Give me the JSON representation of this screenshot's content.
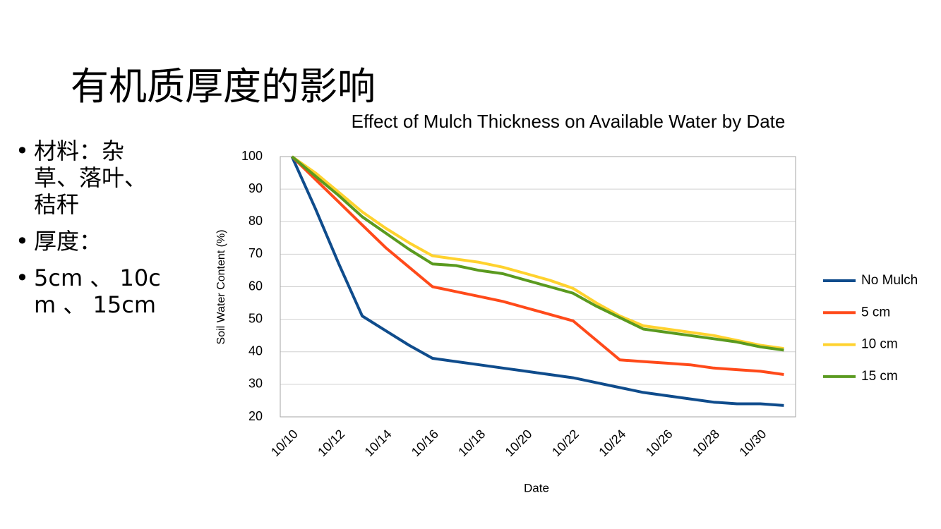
{
  "slide_title": "有机质厚度的影响",
  "bullets": [
    "材料：杂草、落叶、秸秆",
    "厚度：",
    "5cm 、 10cm 、 15cm"
  ],
  "chart_data": {
    "type": "line",
    "title": "Effect of Mulch Thickness on Available Water by Date",
    "x_label": "Date",
    "y_label": "Soil Water Content (%)",
    "categories": [
      "10/10",
      null,
      "10/12",
      null,
      "10/14",
      null,
      "10/16",
      null,
      "10/18",
      null,
      "10/20",
      null,
      "10/22",
      null,
      "10/24",
      null,
      "10/26",
      null,
      "10/28",
      null,
      "10/30",
      null
    ],
    "series": [
      {
        "name": "No Mulch",
        "color": "#0f4c8c",
        "values": [
          100,
          84,
          67,
          51,
          46.5,
          42,
          38,
          37,
          36,
          35,
          34,
          33,
          32,
          30.5,
          29,
          27.5,
          26.5,
          25.5,
          24.5,
          24,
          24,
          23.5
        ]
      },
      {
        "name": "5 cm",
        "color": "#ff4a1a",
        "values": [
          100,
          93,
          86,
          79,
          72,
          66,
          60,
          58.5,
          57,
          55.5,
          53.5,
          51.5,
          49.5,
          43.5,
          37.5,
          37,
          36.5,
          36,
          35,
          34.5,
          34,
          33
        ]
      },
      {
        "name": "10 cm",
        "color": "#ffd22e",
        "values": [
          100,
          95,
          89,
          83,
          78,
          73.5,
          69.5,
          68.5,
          67.5,
          66,
          64,
          62,
          59.5,
          55,
          51,
          48,
          47,
          46,
          45,
          43.5,
          42,
          41
        ]
      },
      {
        "name": "15 cm",
        "color": "#5a9a1f",
        "values": [
          100,
          94,
          88,
          81.5,
          76.5,
          71.5,
          67,
          66.5,
          65,
          64,
          62,
          60,
          58,
          54,
          50.5,
          47,
          46,
          45,
          44,
          43,
          41.5,
          40.5
        ]
      }
    ],
    "ylim": [
      20,
      100
    ],
    "yticks": [
      20,
      30,
      40,
      50,
      60,
      70,
      80,
      90,
      100
    ],
    "grid": true,
    "legend": "right"
  }
}
